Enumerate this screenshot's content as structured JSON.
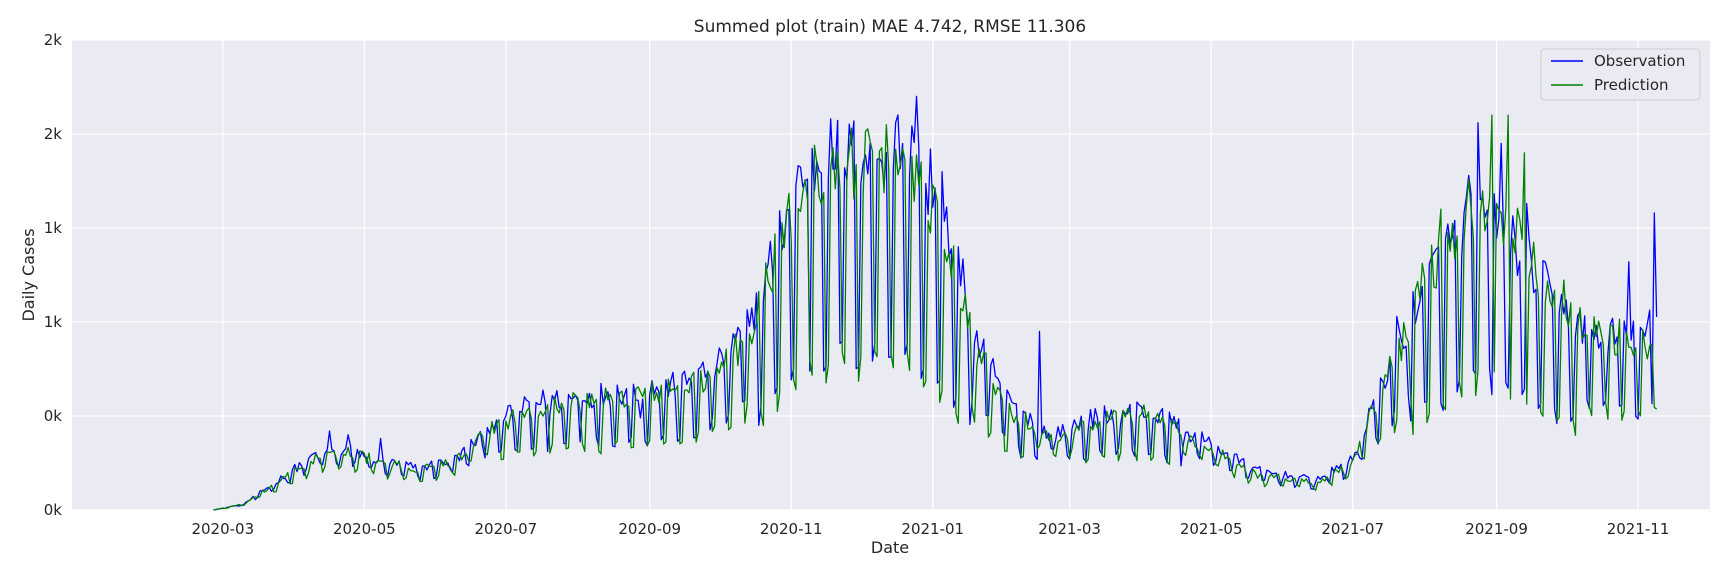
{
  "chart_data": {
    "type": "line",
    "title": "Summed plot (train) MAE 4.742, RMSE 11.306",
    "xlabel": "Date",
    "ylabel": "Daily Cases",
    "x_ticks": [
      "2020-03",
      "2020-05",
      "2020-07",
      "2020-09",
      "2020-11",
      "2021-01",
      "2021-03",
      "2021-05",
      "2021-07",
      "2021-09",
      "2021-11"
    ],
    "y_ticks": [
      0,
      500,
      1000,
      1500,
      2000,
      2500
    ],
    "y_tick_labels": [
      "0k",
      "0k",
      "1k",
      "1k",
      "2k",
      "2k"
    ],
    "xlim": [
      "2019-12-27",
      "2021-12-02"
    ],
    "ylim": [
      0,
      2500
    ],
    "grid": true,
    "legend_position": "top-right",
    "background": "#eaeaf2",
    "series": [
      {
        "name": "Observation",
        "color": "#0000ff",
        "pattern": "obs",
        "knots": [
          [
            "2020-02-26",
            0
          ],
          [
            "2020-03-10",
            30
          ],
          [
            "2020-03-25",
            150
          ],
          [
            "2020-04-10",
            280
          ],
          [
            "2020-04-25",
            300
          ],
          [
            "2020-05-10",
            240
          ],
          [
            "2020-05-25",
            210
          ],
          [
            "2020-06-10",
            260
          ],
          [
            "2020-06-25",
            420
          ],
          [
            "2020-07-15",
            520
          ],
          [
            "2020-08-15",
            560
          ],
          [
            "2020-09-15",
            600
          ],
          [
            "2020-10-01",
            700
          ],
          [
            "2020-10-15",
            900
          ],
          [
            "2020-10-25",
            1200
          ],
          [
            "2020-11-05",
            1550
          ],
          [
            "2020-11-20",
            1650
          ],
          [
            "2020-12-05",
            1620
          ],
          [
            "2020-12-20",
            1700
          ],
          [
            "2020-12-28",
            1500
          ],
          [
            "2021-01-10",
            1200
          ],
          [
            "2021-01-20",
            800
          ],
          [
            "2021-02-05",
            500
          ],
          [
            "2021-02-20",
            380
          ],
          [
            "2021-03-15",
            450
          ],
          [
            "2021-04-01",
            480
          ],
          [
            "2021-04-15",
            420
          ],
          [
            "2021-05-01",
            330
          ],
          [
            "2021-05-20",
            200
          ],
          [
            "2021-06-15",
            150
          ],
          [
            "2021-07-01",
            250
          ],
          [
            "2021-07-15",
            650
          ],
          [
            "2021-08-01",
            1050
          ],
          [
            "2021-08-20",
            1350
          ],
          [
            "2021-09-01",
            1350
          ],
          [
            "2021-09-20",
            1050
          ],
          [
            "2021-10-10",
            850
          ],
          [
            "2021-11-01",
            820
          ],
          [
            "2021-11-09",
            900
          ]
        ],
        "spikes": [
          [
            "2020-04-16",
            420
          ],
          [
            "2020-04-24",
            400
          ],
          [
            "2020-05-08",
            380
          ],
          [
            "2020-07-01",
            500
          ],
          [
            "2020-07-20",
            510
          ],
          [
            "2020-08-03",
            580
          ],
          [
            "2020-08-28",
            490
          ],
          [
            "2020-10-08",
            900
          ],
          [
            "2020-11-08",
            1760
          ],
          [
            "2020-12-25",
            2200
          ],
          [
            "2020-12-31",
            1920
          ],
          [
            "2021-01-05",
            1800
          ],
          [
            "2021-02-16",
            950
          ],
          [
            "2021-07-20",
            1030
          ],
          [
            "2021-08-24",
            2060
          ],
          [
            "2021-08-20",
            1780
          ],
          [
            "2021-09-03",
            1950
          ],
          [
            "2021-09-14",
            1630
          ],
          [
            "2021-10-28",
            1320
          ],
          [
            "2021-11-08",
            1580
          ]
        ]
      },
      {
        "name": "Prediction",
        "color": "#008000",
        "pattern": "pred",
        "knots": [
          [
            "2020-02-26",
            0
          ],
          [
            "2020-03-10",
            30
          ],
          [
            "2020-03-25",
            140
          ],
          [
            "2020-04-10",
            260
          ],
          [
            "2020-04-25",
            290
          ],
          [
            "2020-05-10",
            230
          ],
          [
            "2020-05-25",
            200
          ],
          [
            "2020-06-10",
            250
          ],
          [
            "2020-06-25",
            400
          ],
          [
            "2020-07-15",
            500
          ],
          [
            "2020-08-15",
            530
          ],
          [
            "2020-09-15",
            580
          ],
          [
            "2020-10-01",
            660
          ],
          [
            "2020-10-15",
            860
          ],
          [
            "2020-10-25",
            1150
          ],
          [
            "2020-11-05",
            1480
          ],
          [
            "2020-11-20",
            1600
          ],
          [
            "2020-12-05",
            1580
          ],
          [
            "2020-12-20",
            1650
          ],
          [
            "2020-12-28",
            1480
          ],
          [
            "2021-01-10",
            1150
          ],
          [
            "2021-01-20",
            760
          ],
          [
            "2021-02-05",
            470
          ],
          [
            "2021-02-20",
            360
          ],
          [
            "2021-03-15",
            430
          ],
          [
            "2021-04-01",
            470
          ],
          [
            "2021-04-15",
            400
          ],
          [
            "2021-05-01",
            310
          ],
          [
            "2021-05-20",
            180
          ],
          [
            "2021-06-15",
            140
          ],
          [
            "2021-07-01",
            230
          ],
          [
            "2021-07-15",
            620
          ],
          [
            "2021-08-01",
            1050
          ],
          [
            "2021-08-20",
            1400
          ],
          [
            "2021-09-01",
            1420
          ],
          [
            "2021-09-20",
            1080
          ],
          [
            "2021-10-10",
            860
          ],
          [
            "2021-11-01",
            800
          ],
          [
            "2021-11-09",
            780
          ]
        ],
        "spikes": [
          [
            "2021-08-30",
            2100
          ],
          [
            "2021-09-06",
            2100
          ],
          [
            "2021-09-13",
            1900
          ],
          [
            "2021-08-08",
            1600
          ]
        ]
      }
    ]
  }
}
